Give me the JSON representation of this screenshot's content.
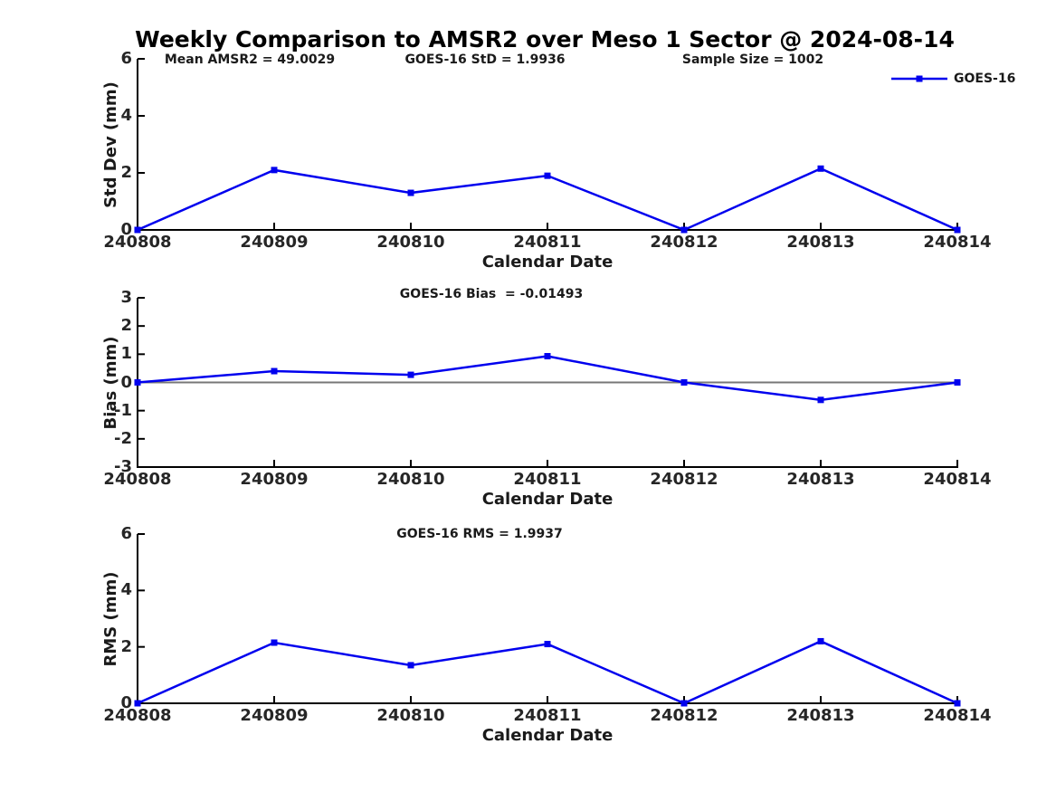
{
  "title": "Weekly Comparison to AMSR2 over Meso 1 Sector @ 2024-08-14",
  "colors": {
    "line": "#0000EE",
    "axis": "#000000",
    "zero_line": "#777777",
    "background": "#FFFFFF"
  },
  "legend": {
    "label": "GOES-16",
    "position": "top-right",
    "marker": "square"
  },
  "chart_data": [
    {
      "id": "stddev",
      "type": "line",
      "ylabel": "Std Dev (mm)",
      "xlabel": "Calendar Date",
      "categories": [
        "240808",
        "240809",
        "240810",
        "240811",
        "240812",
        "240813",
        "240814"
      ],
      "series": [
        {
          "name": "GOES-16",
          "values": [
            0.0,
            2.1,
            1.3,
            1.9,
            0.0,
            2.15,
            0.0
          ]
        }
      ],
      "ylim": [
        0,
        6
      ],
      "yticks": [
        0,
        2,
        4,
        6
      ],
      "annotations": [
        "Mean AMSR2 = 49.0029",
        "GOES-16 StD = 1.9936",
        "Sample Size = 1002"
      ],
      "zero_line": false,
      "legend_visible": true,
      "grid": false
    },
    {
      "id": "bias",
      "type": "line",
      "ylabel": "Bias (mm)",
      "xlabel": "Calendar Date",
      "categories": [
        "240808",
        "240809",
        "240810",
        "240811",
        "240812",
        "240813",
        "240814"
      ],
      "series": [
        {
          "name": "GOES-16",
          "values": [
            0.0,
            0.4,
            0.27,
            0.93,
            0.0,
            -0.62,
            0.0
          ]
        }
      ],
      "ylim": [
        -3,
        3
      ],
      "yticks": [
        -3,
        -2,
        -1,
        0,
        1,
        2,
        3
      ],
      "annotations": [
        "GOES-16 Bias  = -0.01493"
      ],
      "zero_line": true,
      "legend_visible": false,
      "grid": false
    },
    {
      "id": "rms",
      "type": "line",
      "ylabel": "RMS (mm)",
      "xlabel": "Calendar Date",
      "categories": [
        "240808",
        "240809",
        "240810",
        "240811",
        "240812",
        "240813",
        "240814"
      ],
      "series": [
        {
          "name": "GOES-16",
          "values": [
            0.0,
            2.15,
            1.35,
            2.1,
            0.0,
            2.2,
            0.0
          ]
        }
      ],
      "ylim": [
        0,
        6
      ],
      "yticks": [
        0,
        2,
        4,
        6
      ],
      "annotations": [
        "GOES-16 RMS = 1.9937"
      ],
      "zero_line": false,
      "legend_visible": false,
      "grid": false
    }
  ]
}
